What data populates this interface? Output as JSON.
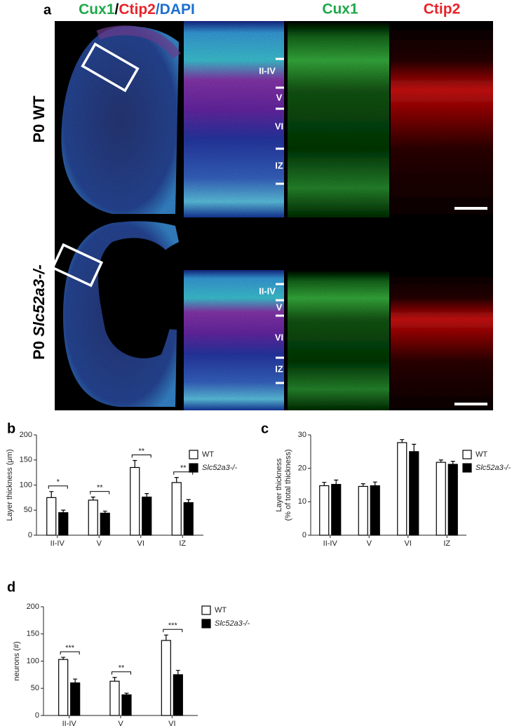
{
  "figure": {
    "panels": [
      "a",
      "b",
      "c",
      "d"
    ],
    "title_left": [
      "Cux1",
      "/",
      "Ctip2",
      "/DAPI"
    ],
    "title_cux1": "Cux1",
    "title_ctip2": "Ctip2",
    "rows": [
      {
        "prefix": "P0",
        "label": "WT"
      },
      {
        "prefix": "P0",
        "label": "Slc52a3-/-"
      }
    ],
    "layers": [
      [
        "II-IV",
        "V",
        "VI",
        "IZ"
      ],
      [
        "II-IV",
        "V",
        "VI",
        "IZ"
      ]
    ]
  },
  "chart_data": [
    {
      "type": "bar",
      "ylabel": [
        "Layer thickness (μm)"
      ],
      "categories": [
        "II-IV",
        "V",
        "VI",
        "IZ"
      ],
      "series": [
        {
          "name": "WT",
          "color": "#ffffff",
          "values": [
            75,
            70,
            135,
            105
          ],
          "errors": [
            12,
            6,
            14,
            10
          ]
        },
        {
          "name": "Slc52a3-/-",
          "color": "#000000",
          "values": [
            45,
            44,
            76,
            65
          ],
          "errors": [
            5,
            4,
            7,
            6
          ]
        }
      ],
      "significance": [
        "*",
        "**",
        "**",
        "**"
      ],
      "ylim": [
        0,
        200
      ],
      "yticks": [
        0,
        50,
        100,
        150,
        200
      ]
    },
    {
      "type": "bar",
      "ylabel": [
        "Layer thickness",
        "(% of total thickness)"
      ],
      "categories": [
        "II-IV",
        "V",
        "VI",
        "IZ"
      ],
      "series": [
        {
          "name": "WT",
          "color": "#ffffff",
          "values": [
            14.8,
            14.6,
            27.7,
            21.8
          ],
          "errors": [
            1,
            0.8,
            0.9,
            0.7
          ]
        },
        {
          "name": "Slc52a3-/-",
          "color": "#000000",
          "values": [
            15.2,
            14.8,
            25,
            21.2
          ],
          "errors": [
            1.3,
            1.1,
            2.2,
            0.9
          ]
        }
      ],
      "ylim": [
        0,
        30
      ],
      "yticks": [
        0,
        10,
        20,
        30
      ]
    },
    {
      "type": "bar",
      "ylabel": [
        "neurons (#)"
      ],
      "categories": [
        "II-IV",
        "V",
        "VI"
      ],
      "series": [
        {
          "name": "WT",
          "color": "#ffffff",
          "values": [
            103,
            63,
            138
          ],
          "errors": [
            4,
            7,
            10
          ]
        },
        {
          "name": "Slc52a3-/-",
          "color": "#000000",
          "values": [
            60,
            38,
            75
          ],
          "errors": [
            7,
            3,
            8
          ]
        }
      ],
      "significance": [
        "***",
        "**",
        "***"
      ],
      "ylim": [
        0,
        200
      ],
      "yticks": [
        0,
        50,
        100,
        150,
        200
      ]
    }
  ]
}
